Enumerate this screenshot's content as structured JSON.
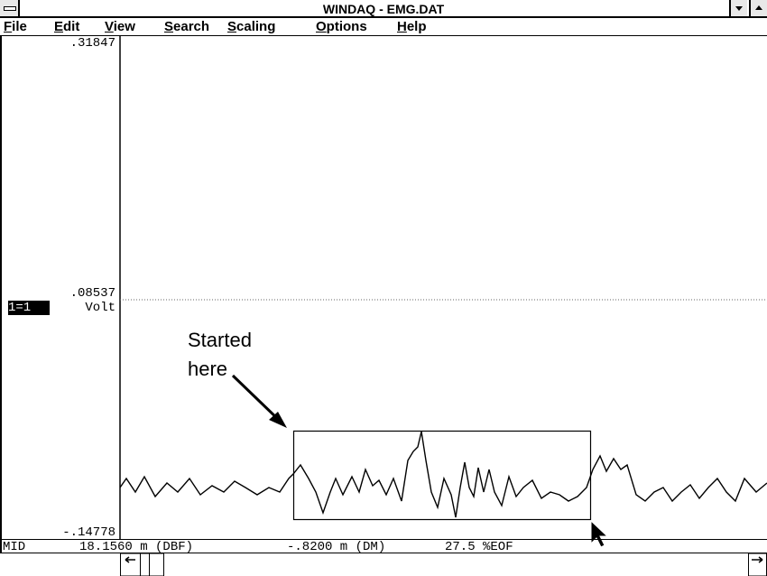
{
  "window": {
    "title": "WINDAQ - EMG.DAT"
  },
  "menu": [
    "File",
    "Edit",
    "View",
    "Search",
    "Scaling",
    "Options",
    "Help"
  ],
  "scale": {
    "top": ".31847",
    "middle": ".08537",
    "channel": "1=1",
    "unit": "Volt",
    "bottom": "-.14778"
  },
  "annotation": {
    "line1": "Started",
    "line2": "here"
  },
  "status": [
    "MID",
    "18.1560 m (DBF)",
    "-.8200 m (DM)",
    "27.5 %EOF"
  ]
}
